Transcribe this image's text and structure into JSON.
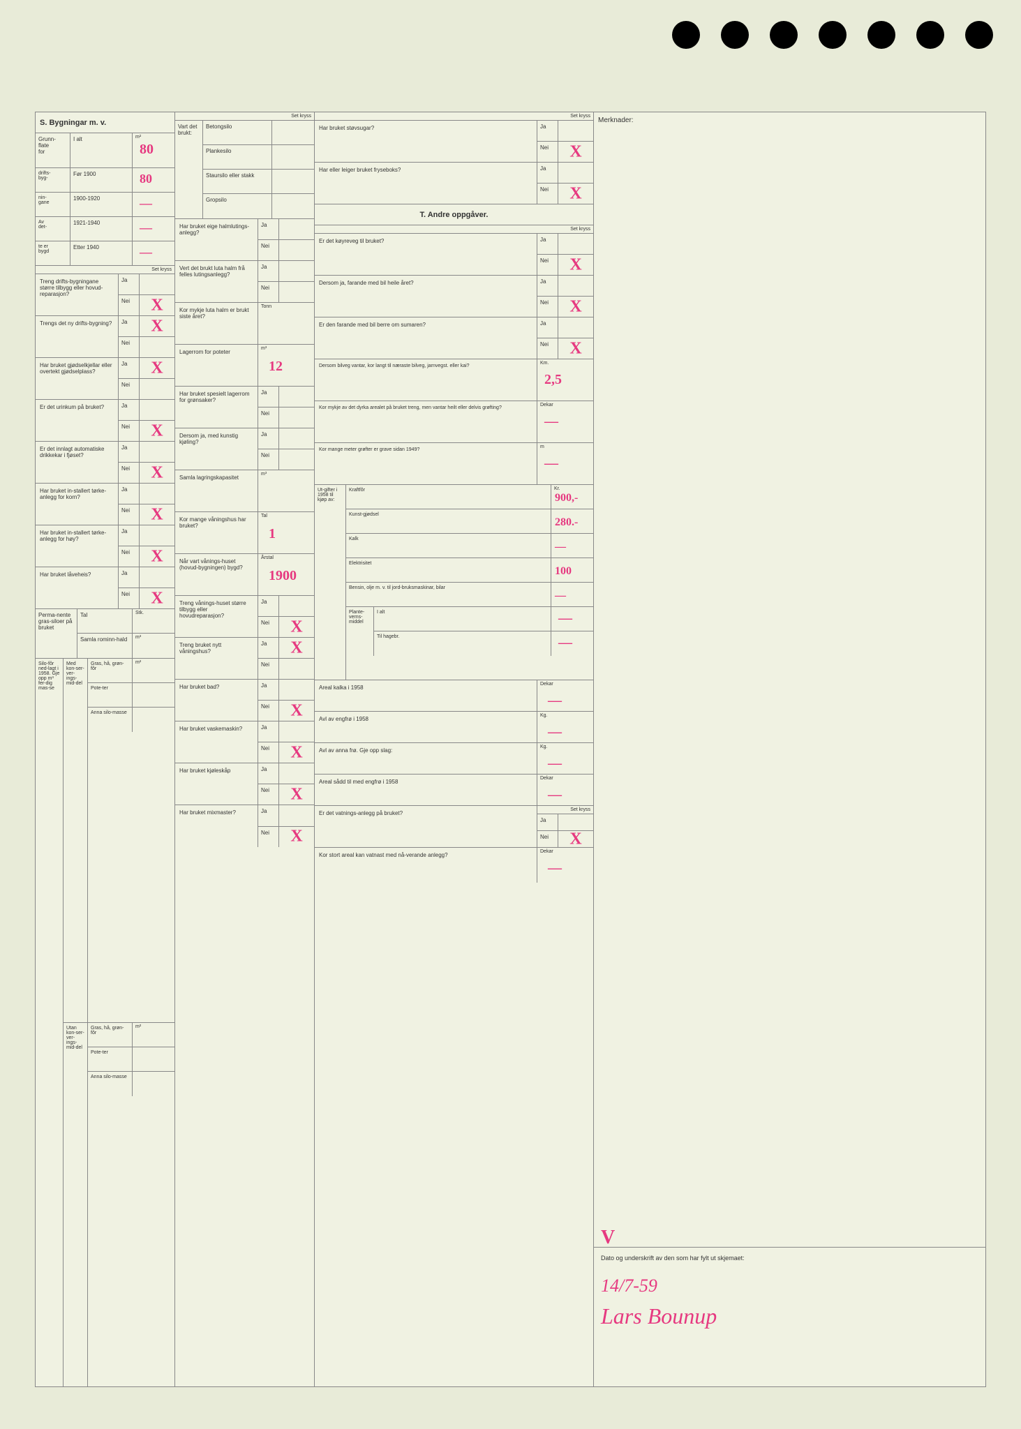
{
  "colors": {
    "paper": "#f0f2e2",
    "background": "#e8ebd8",
    "ink_red": "#e63980",
    "border": "#888888",
    "text": "#333333"
  },
  "punch_holes": 7,
  "section_s": {
    "title": "S. Bygningar m. v.",
    "grunnflate": {
      "label": "Grunn-flate for drifts-byg-nin-gane i jord-bruket (ut-husa)",
      "unit": "m²",
      "i_alt": "80",
      "rows": [
        {
          "label": "Før 1900",
          "value": "80"
        },
        {
          "label": "1900-1920",
          "value": "—"
        },
        {
          "label": "1921-1940",
          "value": "—"
        },
        {
          "label": "Etter 1940",
          "value": "—"
        }
      ],
      "av_dette_bygd": "Av det-te er bygd"
    },
    "questions_col1": [
      {
        "text": "Treng drifts-bygningane større tilbygg eller hovud-reparasjon?",
        "ja": "",
        "nei": "X"
      },
      {
        "text": "Trengs det ny drifts-bygning?",
        "ja": "X",
        "nei": ""
      },
      {
        "text": "Har bruket gjødselkjellar eller overtekt gjødselplass?",
        "ja": "X",
        "nei": ""
      },
      {
        "text": "Er det urinkum på bruket?",
        "ja": "",
        "nei": "X"
      },
      {
        "text": "Er det innlagt automatiske drikkekar i fjøset?",
        "ja": "",
        "nei": "X"
      },
      {
        "text": "Har bruket in-stallert tørke-anlegg for korn?",
        "ja": "",
        "nei": "X"
      },
      {
        "text": "Har bruket in-stallert tørke-anlegg for høy?",
        "ja": "",
        "nei": "X"
      },
      {
        "text": "Har bruket låveheis?",
        "ja": "",
        "nei": "X"
      }
    ],
    "permanente_grassiloer": {
      "label": "Perma-nente gras-siloer på bruket",
      "tal_label": "Tal",
      "tal_value": "",
      "rominn_label": "Samla rominn-hald",
      "rominn_unit": "m³",
      "rominn_value": ""
    },
    "silofor": {
      "label": "Silo-fôr ned-lagt i 1958. Gje opp m³ fer-dig mas-se",
      "med_label": "Med kon-ser-ver-ings-mid-del",
      "utan_label": "Utan kon-ser-ver-ings-mid-del",
      "rows": [
        "Gras, hå, grøn-fôr",
        "Pote-ter",
        "Anna silo-masse"
      ],
      "unit": "m²"
    }
  },
  "section_mid": {
    "vart_brukt": "Vart det brukt:",
    "silo_types": [
      "Betongsilo",
      "Plankesilo",
      "Staursilo eller stakk",
      "Gropsilo"
    ],
    "questions": [
      {
        "text": "Har bruket eige halmlutings-anlegg?",
        "ja": "",
        "nei": ""
      },
      {
        "text": "Vert det brukt luta halm frå felles lutingsanlegg?",
        "ja": "",
        "nei": ""
      },
      {
        "text": "Kor mykje luta halm er brukt siste året?",
        "unit": "Tonn",
        "value": ""
      },
      {
        "text": "Lagerrom for poteter",
        "unit": "m³",
        "value": "12"
      },
      {
        "text": "Har bruket spesielt lagerrom for grønsaker?",
        "ja": "",
        "nei": ""
      },
      {
        "text": "Dersom ja, med kunstig kjøling?",
        "ja": "",
        "nei": ""
      },
      {
        "text": "Samla lagringskapasitet",
        "unit": "m³",
        "value": ""
      },
      {
        "text": "Kor mange våningshus har bruket?",
        "unit": "Tal",
        "value": "1"
      },
      {
        "text": "Når vart vånings-huset (hovud-bygningen) bygd?",
        "unit": "Årstal",
        "value": "1900"
      },
      {
        "text": "Treng vånings-huset større tilbygg eller hovudreparasjon?",
        "ja": "",
        "nei": "X"
      },
      {
        "text": "Treng bruket nytt våningshus?",
        "ja": "X",
        "nei": ""
      },
      {
        "text": "Har bruket bad?",
        "ja": "",
        "nei": "X"
      },
      {
        "text": "Har bruket vaskemaskin?",
        "ja": "",
        "nei": "X"
      },
      {
        "text": "Har bruket kjøleskåp",
        "ja": "",
        "nei": "X"
      },
      {
        "text": "Har bruket mixmaster?",
        "ja": "",
        "nei": "X"
      }
    ]
  },
  "section_right": {
    "questions_top": [
      {
        "text": "Har bruket støvsugar?",
        "ja": "",
        "nei": "X"
      },
      {
        "text": "Har eller leiger bruket fryseboks?",
        "ja": "",
        "nei": "X"
      }
    ],
    "section_t_title": "T. Andre oppgåver.",
    "questions_t": [
      {
        "text": "Er det køyreveg til bruket?",
        "ja": "",
        "nei": "X"
      },
      {
        "text": "Dersom ja, farande med bil heile året?",
        "ja": "",
        "nei": "X"
      },
      {
        "text": "Er den farande med bil berre om sumaren?",
        "ja": "",
        "nei": "X"
      }
    ],
    "bilveg": {
      "text": "Dersom bilveg vantar, kor langt til næraste bilveg, jarnvegst. eller kai?",
      "unit": "Km.",
      "value": "2,5"
    },
    "dyrka": {
      "text": "Kor mykje av det dyrka arealet på bruket treng, men vantar heilt eller delvis grøfting?",
      "unit": "Dekar",
      "value": "—"
    },
    "grofter": {
      "text": "Kor mange meter grøfter er grave sidan 1949?",
      "unit": "m",
      "value": "—"
    },
    "utgifter": {
      "label": "Ut-gifter i 1958 til kjøp av:",
      "unit": "Kr.",
      "rows": [
        {
          "label": "Kraftfôr",
          "value": "900,-"
        },
        {
          "label": "Kunst-gjødsel",
          "value": "280.-"
        },
        {
          "label": "Kalk",
          "value": "—"
        },
        {
          "label": "Elektrisitet",
          "value": "100"
        },
        {
          "label": "Bensin, olje m. v. til jord-bruksmaskinar, bilar",
          "value": "—"
        }
      ],
      "plantevern": {
        "label": "Plante-verns-middel",
        "i_alt": {
          "label": "I alt",
          "value": "—"
        },
        "hagebr": {
          "label": "Til hagebr.",
          "value": "—"
        }
      }
    },
    "bottom": [
      {
        "text": "Areal kalka i 1958",
        "unit": "Dekar",
        "value": "—"
      },
      {
        "text": "Avl av engfrø i 1958",
        "unit": "Kg.",
        "value": "—"
      },
      {
        "text": "Avl av anna frø. Gje opp slag:",
        "unit": "Kg.",
        "value": "—"
      },
      {
        "text": "Areal sådd til med engfrø i 1958",
        "unit": "Dekar",
        "value": "—"
      }
    ],
    "vatning": {
      "text": "Er det vatnings-anlegg på bruket?",
      "ja": "",
      "nei": "X"
    },
    "vatnast": {
      "text": "Kor stort areal kan vatnast med nå-verande anlegg?",
      "unit": "Dekar",
      "value": "—"
    }
  },
  "merknader": {
    "label": "Merknader:",
    "v_mark": "V",
    "date_label": "Dato og underskrift av den som har fylt ut skjemaet:",
    "date": "14/7-59",
    "signature": "Lars Bounup"
  },
  "labels": {
    "set_kryss": "Set kryss",
    "ja": "Ja",
    "nei": "Nei",
    "stk": "Stk."
  }
}
